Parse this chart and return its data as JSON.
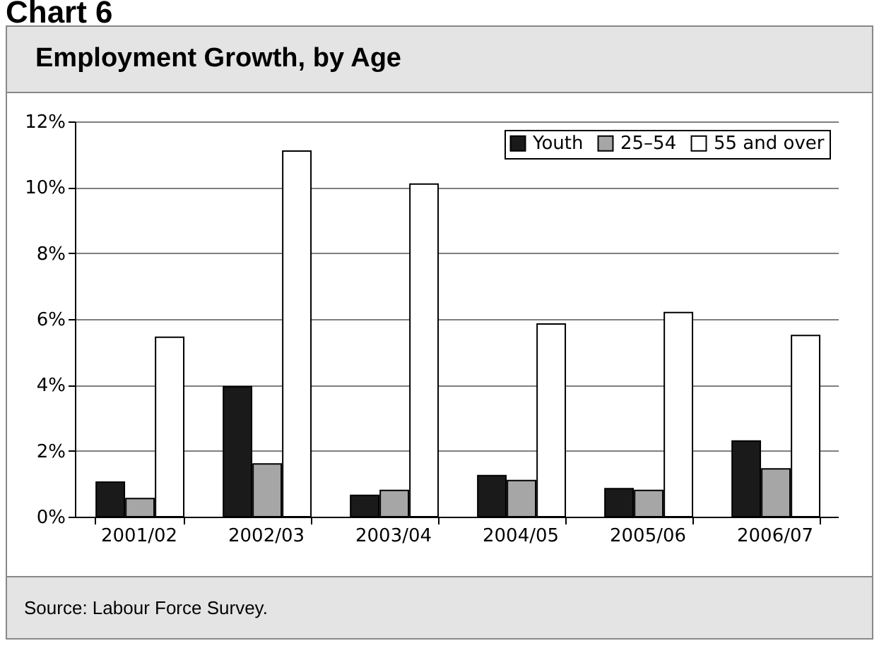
{
  "chart_data": {
    "type": "bar",
    "title": "Chart 6",
    "subtitle": "Employment Growth, by Age",
    "categories": [
      "2001/02",
      "2002/03",
      "2003/04",
      "2004/05",
      "2005/06",
      "2006/07"
    ],
    "series": [
      {
        "name": "Youth",
        "color": "#1a1a1a",
        "values": [
          1.05,
          3.95,
          0.65,
          1.25,
          0.85,
          2.3
        ]
      },
      {
        "name": "25–54",
        "color": "#a6a6a6",
        "values": [
          0.55,
          1.6,
          0.8,
          1.1,
          0.8,
          1.45
        ]
      },
      {
        "name": "55 and over",
        "color": "#ffffff",
        "values": [
          5.45,
          11.1,
          10.1,
          5.85,
          6.2,
          5.5
        ]
      }
    ],
    "ylim": [
      0,
      12
    ],
    "yticks": [
      {
        "value": 0,
        "label": "0%"
      },
      {
        "value": 2,
        "label": "2%"
      },
      {
        "value": 4,
        "label": "4%"
      },
      {
        "value": 6,
        "label": "6%"
      },
      {
        "value": 8,
        "label": "8%"
      },
      {
        "value": 10,
        "label": "10%"
      },
      {
        "value": 12,
        "label": "12%"
      }
    ],
    "grid": "y",
    "legend": "top right",
    "annotations": [
      "Source: Labour Force Survey."
    ]
  }
}
